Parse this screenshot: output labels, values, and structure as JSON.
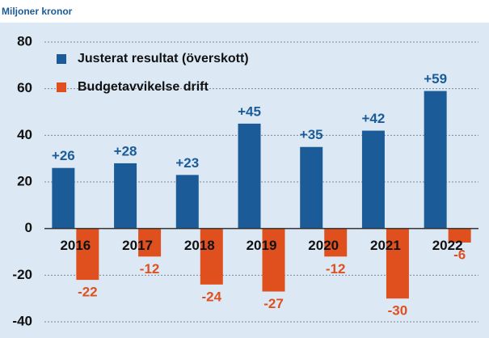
{
  "chart_data": {
    "type": "bar",
    "subtitle": "Miljoner kronor",
    "categories": [
      "2016",
      "2017",
      "2018",
      "2019",
      "2020",
      "2021",
      "2022"
    ],
    "series": [
      {
        "name": "Justerat resultat (överskott)",
        "color": "#1b5c98",
        "values": [
          26,
          28,
          23,
          45,
          35,
          42,
          59
        ],
        "value_labels": [
          "+26",
          "+28",
          "+23",
          "+45",
          "+35",
          "+42",
          "+59"
        ]
      },
      {
        "name": "Budgetavvikelse drift",
        "color": "#e0501e",
        "values": [
          -22,
          -12,
          -24,
          -27,
          -12,
          -30,
          -6
        ]
      }
    ],
    "ylim": [
      -40,
      80
    ],
    "yticks": [
      -40,
      -20,
      0,
      20,
      40,
      60,
      80
    ],
    "grid": true
  }
}
